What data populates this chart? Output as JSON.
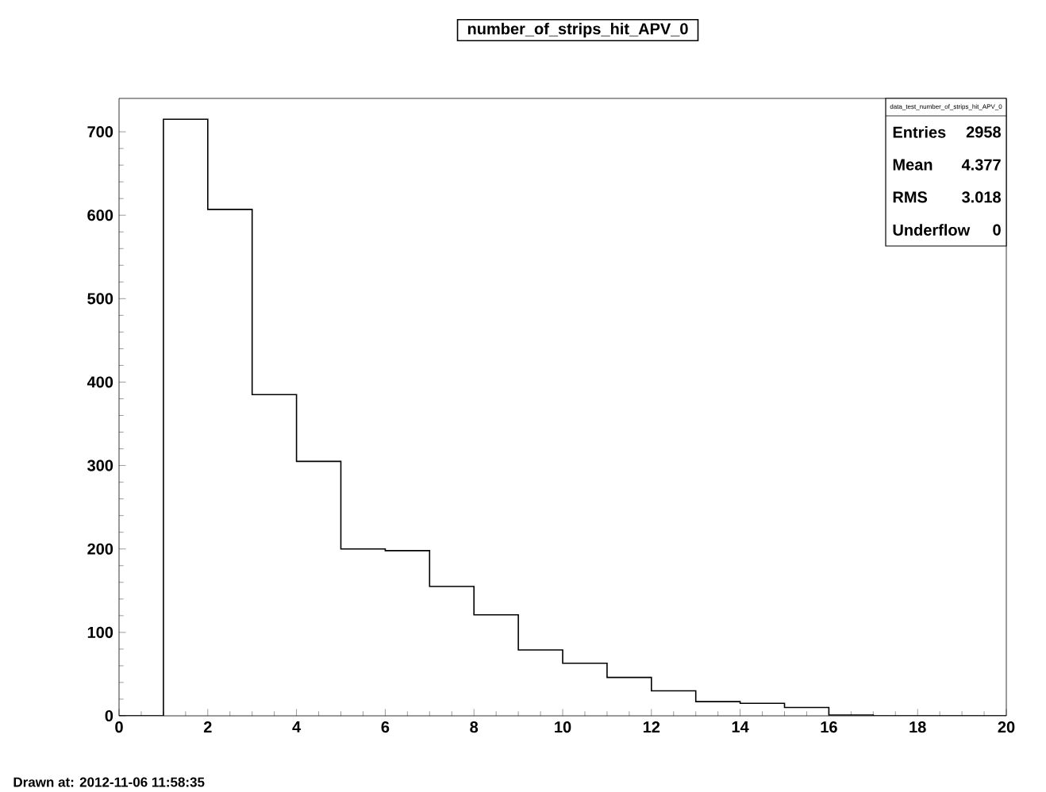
{
  "chart_data": {
    "type": "histogram",
    "title": "number_of_strips_hit_APV_0",
    "bins": [
      0,
      1,
      2,
      3,
      4,
      5,
      6,
      7,
      8,
      9,
      10,
      11,
      12,
      13,
      14,
      15,
      16,
      17,
      18,
      19,
      20
    ],
    "values": [
      0,
      715,
      607,
      385,
      305,
      200,
      198,
      155,
      121,
      79,
      63,
      46,
      30,
      17,
      15,
      10,
      1,
      0,
      0,
      0
    ],
    "color": "#000000",
    "xlim": [
      0,
      20
    ],
    "xticks": [
      0,
      2,
      4,
      6,
      8,
      10,
      12,
      14,
      16,
      18,
      20
    ],
    "ylim": [
      0,
      740
    ],
    "yticks": [
      0,
      100,
      200,
      300,
      400,
      500,
      600,
      700
    ],
    "grid": false,
    "annotations": [
      "Drawn at: 2012-11-06 11:58:35",
      "data_test_number_of_strips_hit_APV_0",
      "Entries",
      "2958",
      "Mean",
      "4.377",
      "RMS",
      "3.018",
      "Underflow",
      "0"
    ]
  }
}
